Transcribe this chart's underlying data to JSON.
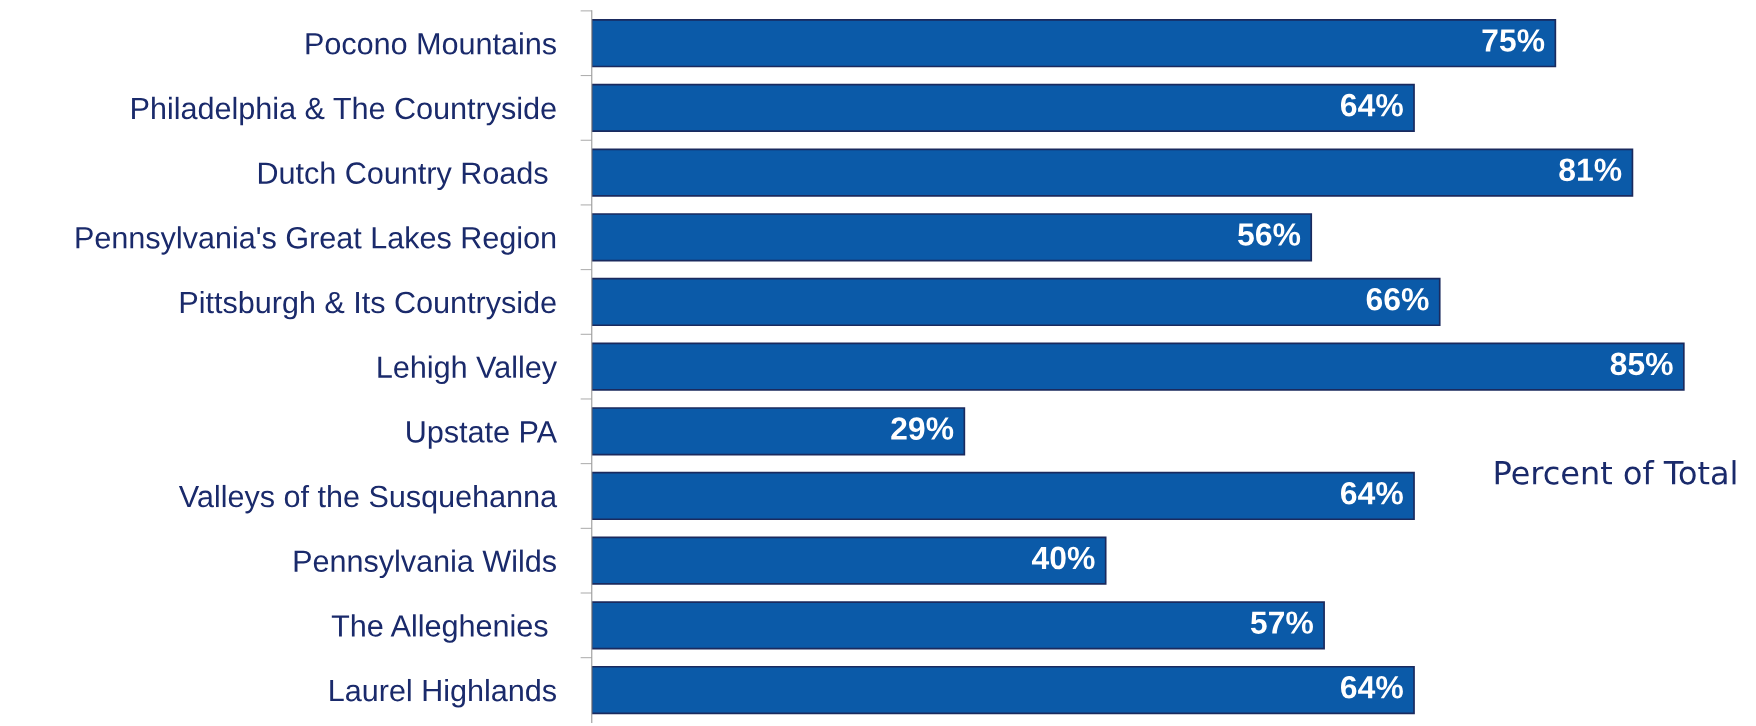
{
  "chart_data": {
    "type": "bar",
    "orientation": "horizontal",
    "categories": [
      "Pocono Mountains",
      "Philadelphia & The Countryside",
      "Dutch Country Roads ",
      "Pennsylvania's Great Lakes Region",
      "Pittsburgh & Its Countryside",
      "Lehigh Valley",
      "Upstate PA",
      "Valleys of the Susquehanna",
      "Pennsylvania Wilds",
      "The Alleghenies ",
      "Laurel Highlands"
    ],
    "values": [
      75,
      64,
      81,
      56,
      66,
      85,
      29,
      64,
      40,
      57,
      64
    ],
    "value_labels": [
      "75%",
      "64%",
      "81%",
      "56%",
      "66%",
      "85%",
      "29%",
      "64%",
      "40%",
      "57%",
      "64%"
    ],
    "color": "#0b5aa8",
    "annotations": [
      "Percent of Total"
    ],
    "tick_labels": "y",
    "grid": false
  }
}
